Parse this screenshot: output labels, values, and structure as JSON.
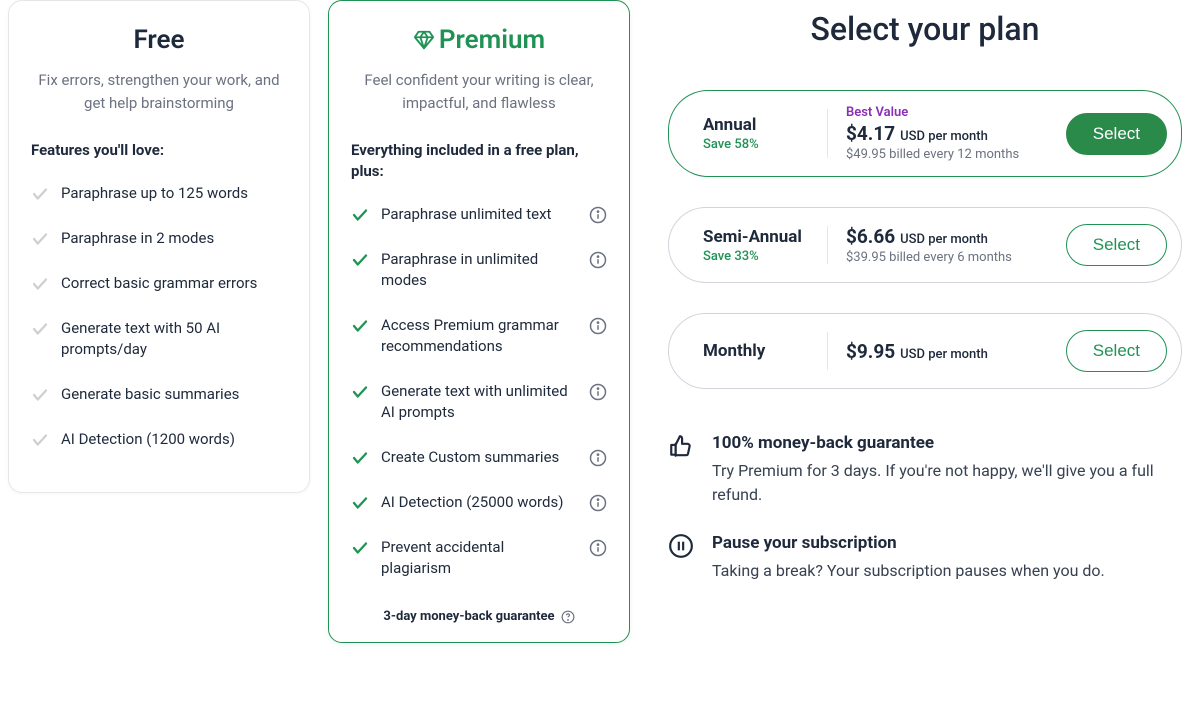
{
  "colors": {
    "premium_green": "#1f9254",
    "select_primary_bg": "#2a8a4a",
    "text_dark": "#1e293b",
    "text_muted": "#6b7280",
    "best_value": "#8b2eb8",
    "border_gray": "#d1d5db",
    "check_gray": "#cfcfcf"
  },
  "free": {
    "title": "Free",
    "tagline": "Fix errors, strengthen your work, and get help brainstorming",
    "section_title": "Features you'll love:",
    "features": [
      "Paraphrase up to 125 words",
      "Paraphrase in 2 modes",
      "Correct basic grammar errors",
      "Generate text with 50 AI prompts/day",
      "Generate basic summaries",
      "AI Detection (1200 words)"
    ]
  },
  "premium": {
    "title": "Premium",
    "tagline": "Feel confident your writing is clear, impactful, and flawless",
    "section_title": "Everything included in a free plan, plus:",
    "features": [
      "Paraphrase unlimited text",
      "Paraphrase in unlimited modes",
      "Access Premium grammar recommendations",
      "Generate text with unlimited AI prompts",
      "Create Custom summaries",
      "AI Detection (25000 words)",
      "Prevent accidental plagiarism"
    ],
    "guarantee": "3-day money-back guarantee"
  },
  "right": {
    "heading": "Select your plan",
    "plans": [
      {
        "name": "Annual",
        "save": "Save 58%",
        "best_value": "Best Value",
        "price": "$4.17",
        "unit": "USD per month",
        "billed": "$49.95 billed every 12 months",
        "button": "Select",
        "selected": true
      },
      {
        "name": "Semi-Annual",
        "save": "Save 33%",
        "best_value": "",
        "price": "$6.66",
        "unit": "USD per month",
        "billed": "$39.95 billed every 6 months",
        "button": "Select",
        "selected": false
      },
      {
        "name": "Monthly",
        "save": "",
        "best_value": "",
        "price": "$9.95",
        "unit": "USD per month",
        "billed": "",
        "button": "Select",
        "selected": false
      }
    ],
    "benefits": [
      {
        "icon": "thumbs-up",
        "title": "100% money-back guarantee",
        "desc": "Try Premium for 3 days. If you're not happy, we'll give you a full refund."
      },
      {
        "icon": "pause",
        "title": "Pause your subscription",
        "desc": "Taking a break? Your subscription pauses when you do."
      }
    ]
  }
}
